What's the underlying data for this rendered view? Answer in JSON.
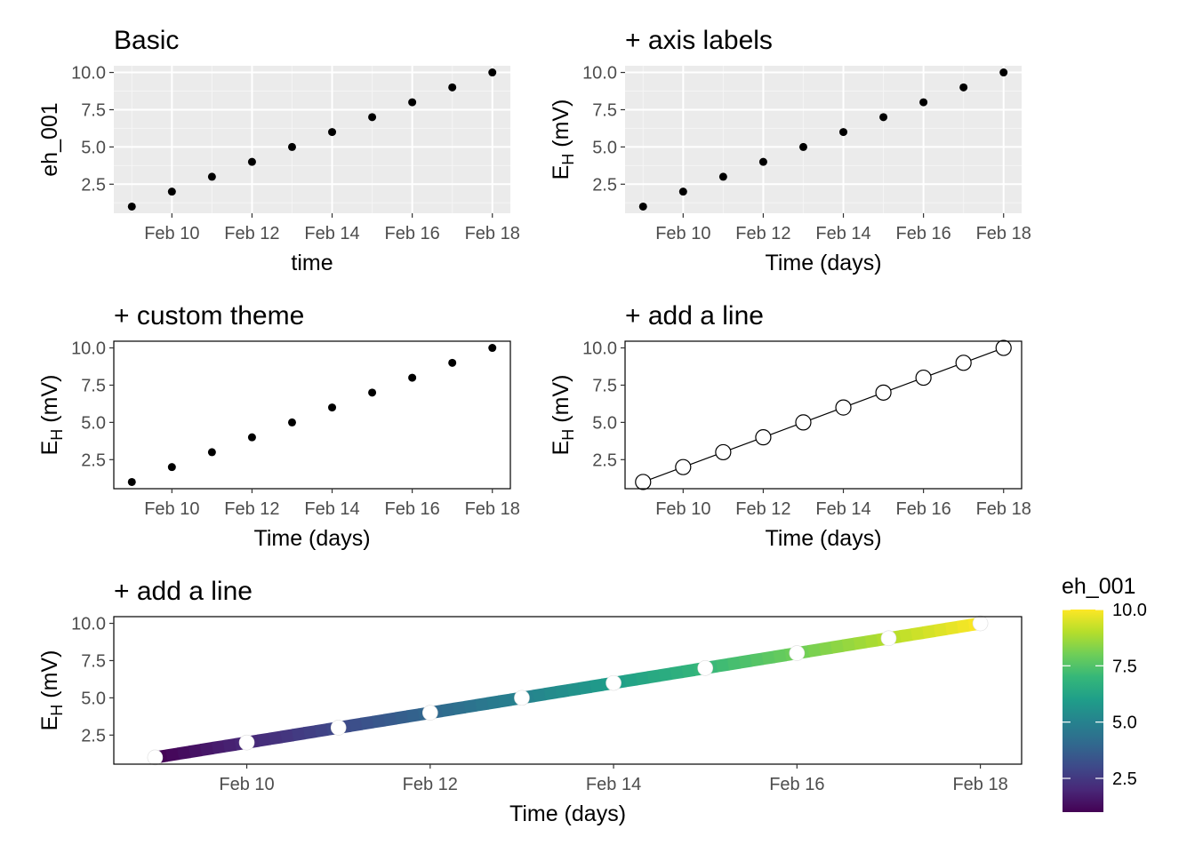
{
  "dates": [
    "2024-02-09",
    "2024-02-10",
    "2024-02-11",
    "2024-02-12",
    "2024-02-13",
    "2024-02-14",
    "2024-02-15",
    "2024-02-16",
    "2024-02-17",
    "2024-02-18"
  ],
  "x_ticks": [
    "Feb 10",
    "Feb 12",
    "Feb 14",
    "Feb 16",
    "Feb 18"
  ],
  "x_tick_dates": [
    "2024-02-10",
    "2024-02-12",
    "2024-02-14",
    "2024-02-16",
    "2024-02-18"
  ],
  "y_ticks": [
    "2.5",
    "5.0",
    "7.5",
    "10.0"
  ],
  "chart_data": [
    {
      "type": "scatter",
      "title": "Basic",
      "xlabel": "time",
      "ylabel": "eh_001",
      "theme": "gray",
      "grid": true,
      "x": [
        "2024-02-09",
        "2024-02-10",
        "2024-02-11",
        "2024-02-12",
        "2024-02-13",
        "2024-02-14",
        "2024-02-15",
        "2024-02-16",
        "2024-02-17",
        "2024-02-18"
      ],
      "y": [
        1,
        2,
        3,
        4,
        5,
        6,
        7,
        8,
        9,
        10
      ],
      "ylim": [
        0.55,
        10.45
      ]
    },
    {
      "type": "scatter",
      "title": "+ axis labels",
      "xlabel": "Time (days)",
      "ylabel": "E",
      "ylabel_sub": "H",
      "ylabel_unit": " (mV)",
      "theme": "gray",
      "grid": true,
      "x": [
        "2024-02-09",
        "2024-02-10",
        "2024-02-11",
        "2024-02-12",
        "2024-02-13",
        "2024-02-14",
        "2024-02-15",
        "2024-02-16",
        "2024-02-17",
        "2024-02-18"
      ],
      "y": [
        1,
        2,
        3,
        4,
        5,
        6,
        7,
        8,
        9,
        10
      ],
      "ylim": [
        0.55,
        10.45
      ]
    },
    {
      "type": "scatter",
      "title": "+ custom theme",
      "xlabel": "Time (days)",
      "ylabel": "E",
      "ylabel_sub": "H",
      "ylabel_unit": " (mV)",
      "theme": "classic-box",
      "grid": false,
      "x": [
        "2024-02-09",
        "2024-02-10",
        "2024-02-11",
        "2024-02-12",
        "2024-02-13",
        "2024-02-14",
        "2024-02-15",
        "2024-02-16",
        "2024-02-17",
        "2024-02-18"
      ],
      "y": [
        1,
        2,
        3,
        4,
        5,
        6,
        7,
        8,
        9,
        10
      ],
      "ylim": [
        0.55,
        10.45
      ]
    },
    {
      "type": "line",
      "title": "+ add a line",
      "xlabel": "Time (days)",
      "ylabel": "E",
      "ylabel_sub": "H",
      "ylabel_unit": " (mV)",
      "theme": "classic-box",
      "grid": false,
      "markers": "open-circle",
      "x": [
        "2024-02-09",
        "2024-02-10",
        "2024-02-11",
        "2024-02-12",
        "2024-02-13",
        "2024-02-14",
        "2024-02-15",
        "2024-02-16",
        "2024-02-17",
        "2024-02-18"
      ],
      "y": [
        1,
        2,
        3,
        4,
        5,
        6,
        7,
        8,
        9,
        10
      ],
      "ylim": [
        0.55,
        10.45
      ]
    },
    {
      "type": "line",
      "title": "+ add a line",
      "xlabel": "Time (days)",
      "ylabel": "E",
      "ylabel_sub": "H",
      "ylabel_unit": " (mV)",
      "theme": "classic-box",
      "grid": false,
      "markers": "white-circle",
      "line_color_by": "eh_001",
      "colormap": "viridis",
      "x": [
        "2024-02-09",
        "2024-02-10",
        "2024-02-11",
        "2024-02-12",
        "2024-02-13",
        "2024-02-14",
        "2024-02-15",
        "2024-02-16",
        "2024-02-17",
        "2024-02-18"
      ],
      "y": [
        1,
        2,
        3,
        4,
        5,
        6,
        7,
        8,
        9,
        10
      ],
      "ylim": [
        0.55,
        10.45
      ],
      "legend": {
        "title": "eh_001",
        "placement": "right",
        "ticks": [
          "2.5",
          "5.0",
          "7.5",
          "10.0"
        ],
        "tick_values": [
          2.5,
          5,
          7.5,
          10
        ],
        "range": [
          1,
          10
        ]
      }
    }
  ],
  "viridis": [
    "#440154",
    "#482878",
    "#3e4989",
    "#31688e",
    "#26828e",
    "#1f9e89",
    "#35b779",
    "#6ece58",
    "#b5de2b",
    "#fde725"
  ]
}
